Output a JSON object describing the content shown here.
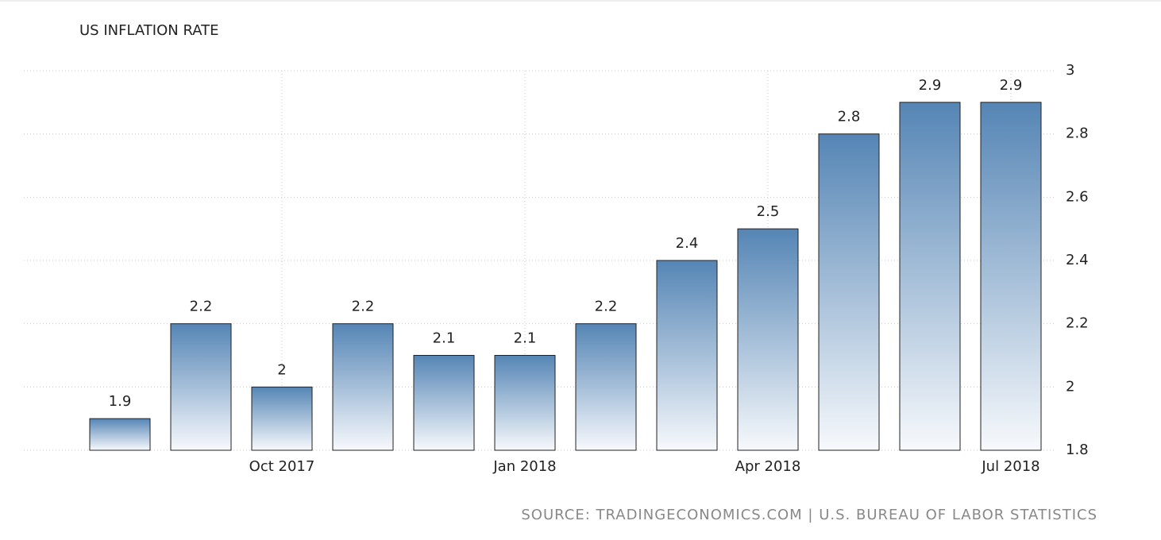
{
  "chart_data": {
    "type": "bar",
    "title": "US INFLATION RATE",
    "source": "SOURCE: TRADINGECONOMICS.COM | U.S. BUREAU OF LABOR STATISTICS",
    "categories": [
      null,
      null,
      "Oct 2017",
      null,
      null,
      "Jan 2018",
      null,
      null,
      "Apr 2018",
      null,
      null,
      "Jul 2018"
    ],
    "values": [
      1.9,
      2.2,
      2,
      2.2,
      2.1,
      2.1,
      2.2,
      2.4,
      2.5,
      2.8,
      2.9,
      2.9
    ],
    "color": "#5585b5",
    "ylim": [
      1.8,
      3
    ],
    "yticks": [
      1.8,
      2,
      2.2,
      2.4,
      2.6,
      2.8,
      3
    ],
    "grid": true
  }
}
